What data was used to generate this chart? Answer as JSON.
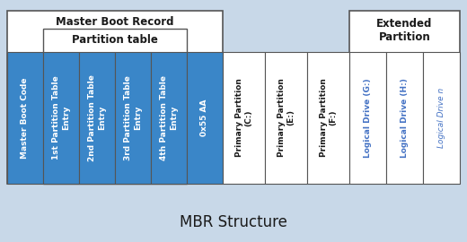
{
  "title": "MBR Structure",
  "background_color": "#c8d8e8",
  "mbr_label": "Master Boot Record",
  "partition_table_label": "Partition table",
  "extended_label": "Extended\nPartition",
  "blue_cells": [
    "Master Boot Code",
    "1st Partition Table\nEntry",
    "2nd Partition Table\nEntry",
    "3rd Partition Table\nEntry",
    "4th Partition Table\nEntry",
    "0x55 AA"
  ],
  "white_cells": [
    "Primary Partition\n(C:)",
    "Primary Partition\n(E:)",
    "Primary Partition\n(F:)"
  ],
  "light_blue_cells": [
    "Logical Drive (G:)",
    "Logical Drive (H:)",
    "Logical Drive n"
  ],
  "cell_blue": "#3a86c8",
  "cell_white": "#ffffff",
  "cell_light_blue_text": "#4472c4",
  "text_white": "#ffffff",
  "text_dark": "#1a1a1a",
  "border_color": "#555555",
  "title_fontsize": 12,
  "cell_fontsize": 6.5,
  "header_fontsize": 8.5
}
